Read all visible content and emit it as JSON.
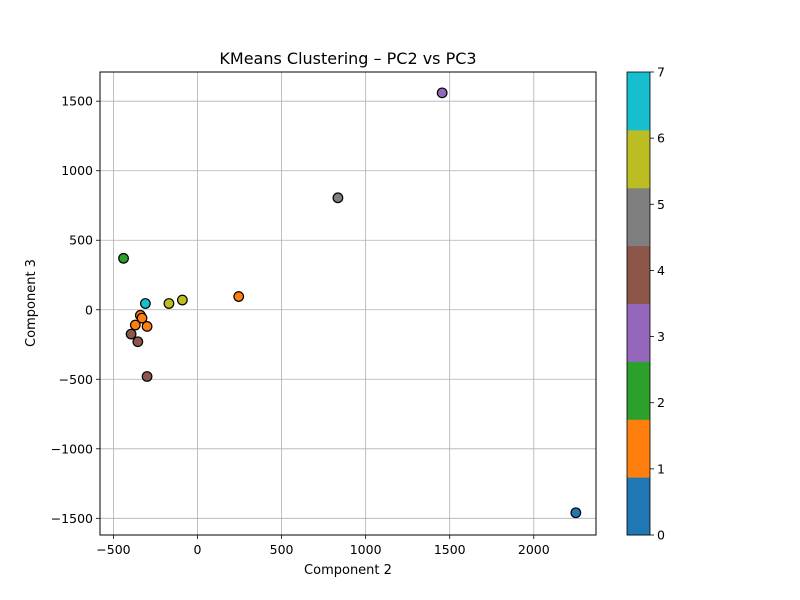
{
  "chart_data": {
    "type": "scatter",
    "title": "KMeans Clustering – PC2 vs PC3",
    "xlabel": "Component 2",
    "ylabel": "Component 3",
    "xlim": [
      -580,
      2370
    ],
    "ylim": [
      -1620,
      1710
    ],
    "xticks": [
      -500,
      0,
      500,
      1000,
      1500,
      2000
    ],
    "yticks": [
      -1500,
      -1000,
      -500,
      0,
      500,
      1000,
      1500
    ],
    "xtick_labels": [
      "−500",
      "0",
      "500",
      "1000",
      "1500",
      "2000"
    ],
    "ytick_labels": [
      "−1500",
      "−1000",
      "−500",
      "0",
      "500",
      "1000",
      "1500"
    ],
    "grid": true,
    "points": [
      {
        "x": 2250,
        "y": -1460,
        "cluster": 0
      },
      {
        "x": 245,
        "y": 95,
        "cluster": 1
      },
      {
        "x": -340,
        "y": -40,
        "cluster": 1
      },
      {
        "x": -370,
        "y": -110,
        "cluster": 1
      },
      {
        "x": -300,
        "y": -120,
        "cluster": 1
      },
      {
        "x": -330,
        "y": -60,
        "cluster": 1
      },
      {
        "x": -440,
        "y": 370,
        "cluster": 2
      },
      {
        "x": 1455,
        "y": 1560,
        "cluster": 3
      },
      {
        "x": -395,
        "y": -175,
        "cluster": 4
      },
      {
        "x": -355,
        "y": -230,
        "cluster": 4
      },
      {
        "x": -300,
        "y": -480,
        "cluster": 4
      },
      {
        "x": 835,
        "y": 805,
        "cluster": 5
      },
      {
        "x": -170,
        "y": 45,
        "cluster": 6
      },
      {
        "x": -90,
        "y": 70,
        "cluster": 6
      },
      {
        "x": -310,
        "y": 45,
        "cluster": 7
      }
    ],
    "colorbar": {
      "min": 0,
      "max": 7,
      "ticks": [
        0,
        1,
        2,
        3,
        4,
        5,
        6,
        7
      ],
      "tick_labels": [
        "0",
        "1",
        "2",
        "3",
        "4",
        "5",
        "6",
        "7"
      ],
      "colors": [
        "#1f77b4",
        "#ff7f0e",
        "#2ca02c",
        "#9467bd",
        "#8c564b",
        "#7f7f7f",
        "#bcbd22",
        "#17becf"
      ]
    }
  }
}
